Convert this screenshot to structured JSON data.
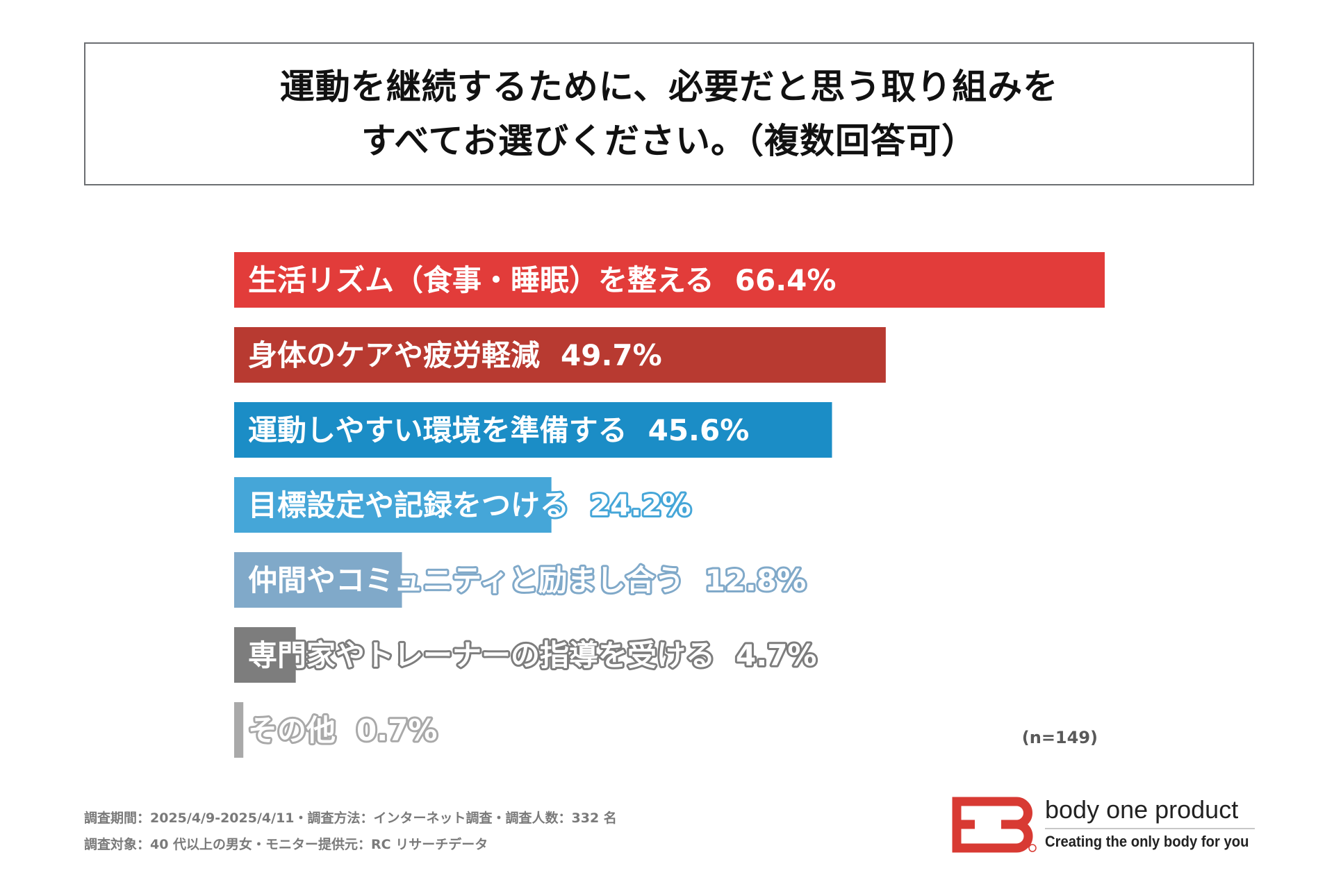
{
  "title": {
    "line1": "運動を継続するために、必要だと思う取り組みを",
    "line2": "すべてお選びください。（複数回答可）"
  },
  "chart_data": {
    "type": "bar",
    "orientation": "horizontal",
    "categories": [
      "生活リズム（食事・睡眠）を整える",
      "身体のケアや疲労軽減",
      "運動しやすい環境を準備する",
      "目標設定や記録をつける",
      "仲間やコミュニティと励まし合う",
      "専門家やトレーナーの指導を受ける",
      "その他"
    ],
    "values": [
      66.4,
      49.7,
      45.6,
      24.2,
      12.8,
      4.7,
      0.7
    ],
    "value_labels": [
      "66.4%",
      "49.7%",
      "45.6%",
      "24.2%",
      "12.8%",
      "4.7%",
      "0.7%"
    ],
    "colors": [
      "#e23c3a",
      "#b83a31",
      "#1b8dc6",
      "#45a6d8",
      "#80a9c9",
      "#7d7d7d",
      "#a9a9a9"
    ],
    "xlim": [
      0,
      66.4
    ],
    "grid": false
  },
  "sample_note": "(n=149)",
  "footnotes": {
    "line1": "調査期間：2025/4/9-2025/4/11・調査方法：インターネット調査・調査人数：332 名",
    "line2": "調査対象：40 代以上の男女・モニター提供元：RC リサーチデータ"
  },
  "logo": {
    "name": "body one product",
    "tagline": "Creating the only body for you",
    "mark_color": "#d83a33"
  }
}
